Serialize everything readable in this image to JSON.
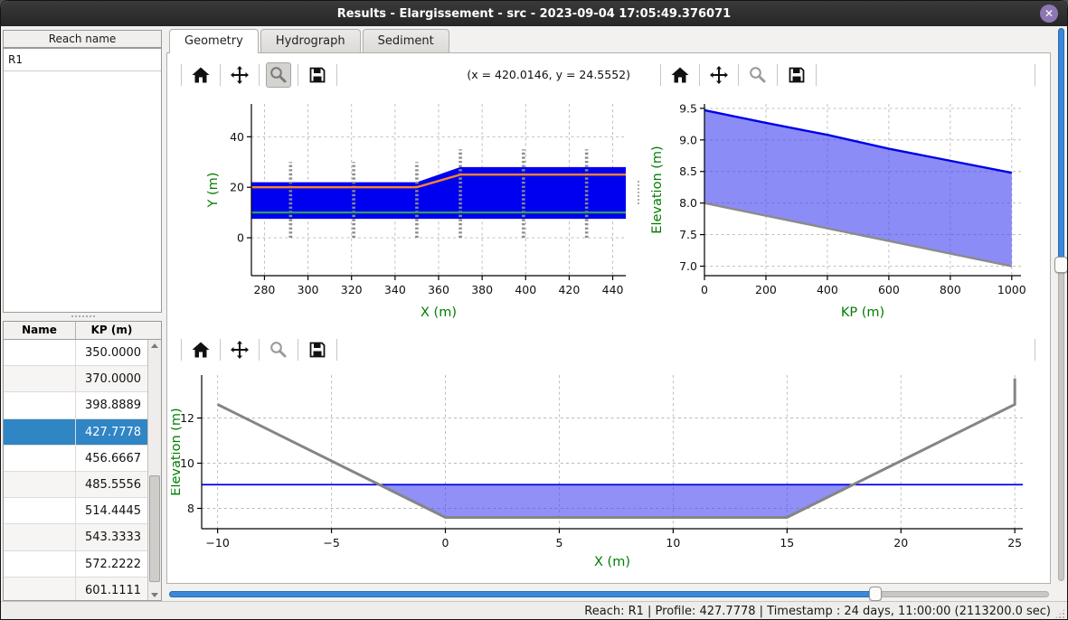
{
  "window": {
    "title": "Results - Elargissement - src - 2023-09-04 17:05:49.376071",
    "close_glyph": "✕"
  },
  "sidebar": {
    "reach_header": "Reach name",
    "reaches": [
      {
        "label": "R1"
      }
    ],
    "table": {
      "headers": [
        "Name",
        "KP (m)"
      ],
      "rows": [
        {
          "name": "",
          "kp": "350.0000"
        },
        {
          "name": "",
          "kp": "370.0000"
        },
        {
          "name": "",
          "kp": "398.8889"
        },
        {
          "name": "",
          "kp": "427.7778"
        },
        {
          "name": "",
          "kp": "456.6667"
        },
        {
          "name": "",
          "kp": "485.5556"
        },
        {
          "name": "",
          "kp": "514.4445"
        },
        {
          "name": "",
          "kp": "543.3333"
        },
        {
          "name": "",
          "kp": "572.2222"
        },
        {
          "name": "",
          "kp": "601.1111"
        }
      ],
      "selected_row_index": 3
    }
  },
  "tabs": [
    {
      "label": "Geometry",
      "active": true
    },
    {
      "label": "Hydrograph",
      "active": false
    },
    {
      "label": "Sediment",
      "active": false
    }
  ],
  "toolbars": {
    "icons": [
      "home",
      "pan",
      "zoom",
      "save"
    ],
    "coords_readout": "(x = 420.0146,  y = 24.5552)"
  },
  "sliders": {
    "horizontal_pct": 80.3,
    "vertical_pct": 42.8,
    "accent_color": "#3b87d9"
  },
  "status_bar": {
    "text": "Reach: R1 | Profile: 427.7778 | Timestamp : 24 days, 11:00:00 (2113200.0 sec)"
  },
  "colors": {
    "titlebar": "#2c2c2c",
    "selection_blue": "#3085c5",
    "axis_label_green": "#007d00",
    "channel_blue": "#0000f0",
    "water_fill": "#4646f0",
    "bed_gray": "#858585",
    "bank_orange": "#f8832d",
    "axis_line_green": "#2f9e5f"
  },
  "chart_data": [
    {
      "id": "plan-view",
      "type": "area",
      "title": "",
      "xlabel": "X (m)",
      "ylabel": "Y (m)",
      "xlim": [
        274,
        446
      ],
      "ylim": [
        -15,
        53
      ],
      "xticks": [
        280,
        300,
        320,
        340,
        360,
        380,
        400,
        420,
        440
      ],
      "yticks": [
        0,
        20,
        40
      ],
      "grid": true,
      "legend": "none",
      "series": [
        {
          "name": "channel-planform",
          "kind": "fill",
          "color": "#0000f0",
          "opacity": 1,
          "points": [
            [
              274,
              7.5
            ],
            [
              446,
              7.5
            ],
            [
              446,
              28
            ],
            [
              370,
              28
            ],
            [
              350,
              22
            ],
            [
              274,
              22
            ]
          ]
        },
        {
          "name": "profile-markers",
          "kind": "vmarkers",
          "color": "#8c8c8c",
          "x": [
            292,
            321,
            350,
            370,
            399,
            428
          ],
          "y0": [
            0,
            0,
            0,
            0,
            0,
            0
          ],
          "y1": [
            30,
            30,
            30,
            35,
            35,
            35
          ]
        },
        {
          "name": "hydraulic-axis",
          "kind": "line",
          "color": "#2f9e5f",
          "width": 2.2,
          "points": [
            [
              274,
              10
            ],
            [
              446,
              10
            ]
          ]
        },
        {
          "name": "bank-line",
          "kind": "line",
          "color": "#f8832d",
          "width": 2.4,
          "points": [
            [
              274,
              20
            ],
            [
              350,
              20
            ],
            [
              370,
              25
            ],
            [
              446,
              25
            ]
          ]
        }
      ]
    },
    {
      "id": "long-profile",
      "type": "area",
      "title": "",
      "xlabel": "KP (m)",
      "ylabel": "Elevation (m)",
      "xlim": [
        0,
        1030
      ],
      "ylim": [
        6.85,
        9.57
      ],
      "xticks": [
        0,
        200,
        400,
        600,
        800,
        1000
      ],
      "yticks": [
        7.0,
        7.5,
        8.0,
        8.5,
        9.0,
        9.5
      ],
      "ytick_decimals": 1,
      "grid": true,
      "legend": "none",
      "series": [
        {
          "name": "water-body",
          "kind": "fill",
          "color": "#4646f0",
          "opacity": 0.62,
          "points": [
            [
              0,
              9.47
            ],
            [
              200,
              9.27
            ],
            [
              400,
              9.08
            ],
            [
              600,
              8.86
            ],
            [
              800,
              8.67
            ],
            [
              1000,
              8.48
            ],
            [
              1000,
              7.0
            ],
            [
              0,
              8.0
            ]
          ]
        },
        {
          "name": "water-surface",
          "kind": "line",
          "color": "#0000e8",
          "width": 2.4,
          "points": [
            [
              0,
              9.47
            ],
            [
              200,
              9.27
            ],
            [
              400,
              9.08
            ],
            [
              600,
              8.86
            ],
            [
              800,
              8.67
            ],
            [
              1000,
              8.48
            ]
          ]
        },
        {
          "name": "bed-line",
          "kind": "line",
          "color": "#8b8b8b",
          "width": 2.4,
          "points": [
            [
              0,
              8.0
            ],
            [
              1000,
              7.0
            ]
          ]
        }
      ]
    },
    {
      "id": "cross-section",
      "type": "area",
      "title": "",
      "xlabel": "X (m)",
      "ylabel": "Elevation (m)",
      "xlim": [
        -10.7,
        25.35
      ],
      "ylim": [
        7.1,
        13.9
      ],
      "xticks": [
        -10,
        -5,
        0,
        5,
        10,
        15,
        20,
        25
      ],
      "yticks": [
        8,
        10,
        12
      ],
      "grid": true,
      "legend": "none",
      "series": [
        {
          "name": "water-area",
          "kind": "fill",
          "color": "#4646f0",
          "opacity": 0.6,
          "points": [
            [
              -2.9,
              9.05
            ],
            [
              0,
              7.6
            ],
            [
              15,
              7.6
            ],
            [
              17.9,
              9.05
            ]
          ]
        },
        {
          "name": "water-level",
          "kind": "line",
          "color": "#0000e8",
          "width": 1.8,
          "points": [
            [
              -10.7,
              9.05
            ],
            [
              25.35,
              9.05
            ]
          ]
        },
        {
          "name": "bed-profile",
          "kind": "line",
          "color": "#858585",
          "width": 3,
          "points": [
            [
              -10,
              12.6
            ],
            [
              0,
              7.6
            ],
            [
              15,
              7.6
            ],
            [
              25,
              12.6
            ],
            [
              25,
              13.75
            ]
          ]
        }
      ]
    }
  ]
}
